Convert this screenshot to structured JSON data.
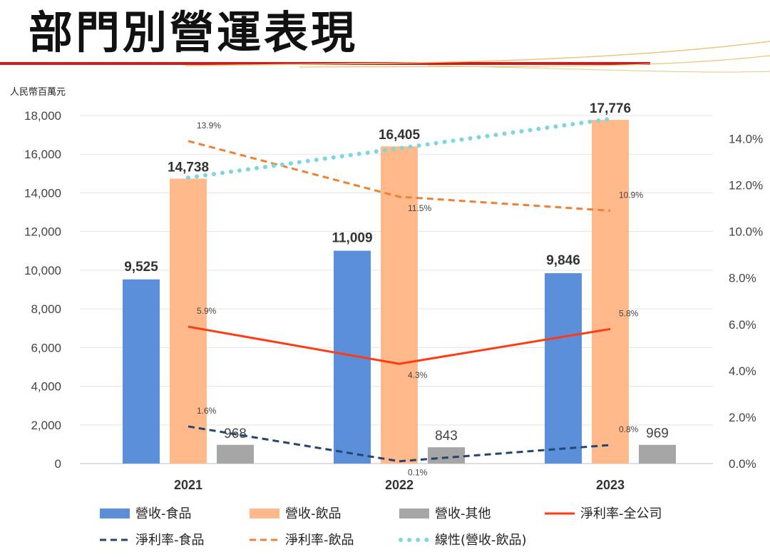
{
  "page": {
    "title": "部門別營運表現"
  },
  "colors": {
    "food": "#5b8fd9",
    "beverage": "#ffb98a",
    "other": "#a6a6a6",
    "margin_company": "#ff3b14",
    "margin_food": "#24456e",
    "margin_beverage": "#ef8135",
    "trend": "#7fd6df",
    "grid": "#e3e3e3",
    "accent_red": "#d11a1a",
    "accent_gold": "#e8c77a"
  },
  "chart_data": {
    "type": "bar",
    "unit_label": "人民幣百萬元",
    "categories": [
      "2021",
      "2022",
      "2023"
    ],
    "y_left": {
      "min": 0,
      "max": 18000,
      "step": 2000,
      "ticks": [
        "0",
        "2,000",
        "4,000",
        "6,000",
        "8,000",
        "10,000",
        "12,000",
        "14,000",
        "16,000",
        "18,000"
      ]
    },
    "y_right": {
      "min": 0,
      "max": 0.15,
      "step": 0.02,
      "ticks": [
        "0.0%",
        "2.0%",
        "4.0%",
        "6.0%",
        "8.0%",
        "10.0%",
        "12.0%",
        "14.0%"
      ]
    },
    "bar_series": [
      {
        "name": "營收-食品",
        "values": [
          9525,
          11009,
          9846
        ],
        "labels": [
          "9,525",
          "11,009",
          "9,846"
        ],
        "color_key": "food"
      },
      {
        "name": "營收-飲品",
        "values": [
          14738,
          16405,
          17776
        ],
        "labels": [
          "14,738",
          "16,405",
          "17,776"
        ],
        "color_key": "beverage"
      },
      {
        "name": "營收-其他",
        "values": [
          968,
          843,
          969
        ],
        "labels": [
          "968",
          "843",
          "969"
        ],
        "color_key": "other"
      }
    ],
    "line_series": [
      {
        "name": "淨利率-全公司",
        "values": [
          0.059,
          0.043,
          0.058
        ],
        "labels": [
          "5.9%",
          "4.3%",
          "5.8%"
        ],
        "style": "solid",
        "color_key": "margin_company"
      },
      {
        "name": "淨利率-食品",
        "values": [
          0.016,
          0.001,
          0.008
        ],
        "labels": [
          "1.6%",
          "0.1%",
          "0.8%"
        ],
        "style": "dash",
        "color_key": "margin_food"
      },
      {
        "name": "淨利率-飲品",
        "values": [
          0.139,
          0.115,
          0.109
        ],
        "labels": [
          "13.9%",
          "11.5%",
          "10.9%"
        ],
        "style": "dash",
        "color_key": "margin_beverage"
      },
      {
        "name": "線性(營收-飲品)",
        "values": [
          14738,
          16405,
          17776
        ],
        "style": "dot",
        "axis": "left",
        "color_key": "trend",
        "trendline": true
      }
    ],
    "legend": [
      {
        "label": "營收-食品",
        "kind": "bar",
        "color_key": "food"
      },
      {
        "label": "營收-飲品",
        "kind": "bar",
        "color_key": "beverage"
      },
      {
        "label": "營收-其他",
        "kind": "bar",
        "color_key": "other"
      },
      {
        "label": "淨利率-全公司",
        "kind": "solid",
        "color_key": "margin_company"
      },
      {
        "label": "淨利率-食品",
        "kind": "dash",
        "color_key": "margin_food"
      },
      {
        "label": "淨利率-飲品",
        "kind": "dash",
        "color_key": "margin_beverage"
      },
      {
        "label": "線性(營收-飲品)",
        "kind": "dot",
        "color_key": "trend"
      }
    ]
  }
}
